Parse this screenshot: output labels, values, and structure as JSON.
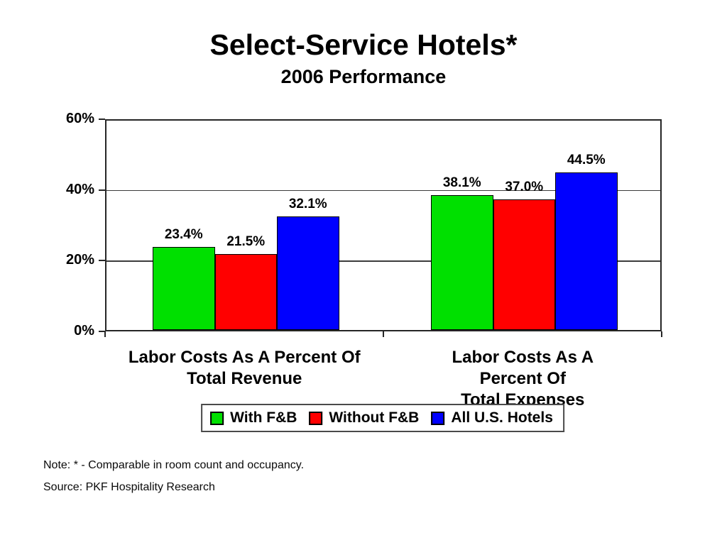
{
  "title": "Select-Service Hotels*",
  "subtitle": "2006 Performance",
  "chart_data": {
    "type": "bar",
    "title": "Select-Service Hotels*",
    "subtitle": "2006 Performance",
    "categories": [
      "Labor Costs As A Percent Of\nTotal Revenue",
      "Labor Costs As A Percent Of\nTotal Expenses"
    ],
    "series": [
      {
        "name": "With F&B",
        "color": "#00E000",
        "values": [
          23.4,
          38.1
        ]
      },
      {
        "name": "Without F&B",
        "color": "#FF0000",
        "values": [
          21.5,
          37.0
        ]
      },
      {
        "name": "All U.S. Hotels",
        "color": "#0000FF",
        "values": [
          32.1,
          44.5
        ]
      }
    ],
    "value_labels": [
      [
        "23.4%",
        "21.5%",
        "32.1%"
      ],
      [
        "38.1%",
        "37.0%",
        "44.5%"
      ]
    ],
    "ylim": [
      0,
      60
    ],
    "yticks": [
      0,
      20,
      40,
      60
    ],
    "ytick_labels": [
      "0%",
      "20%",
      "40%",
      "60%"
    ],
    "grid": "horizontal",
    "legend_position": "bottom"
  },
  "notes": {
    "note": "Note: * - Comparable in room count and occupancy.",
    "source": "Source: PKF Hospitality Research"
  }
}
